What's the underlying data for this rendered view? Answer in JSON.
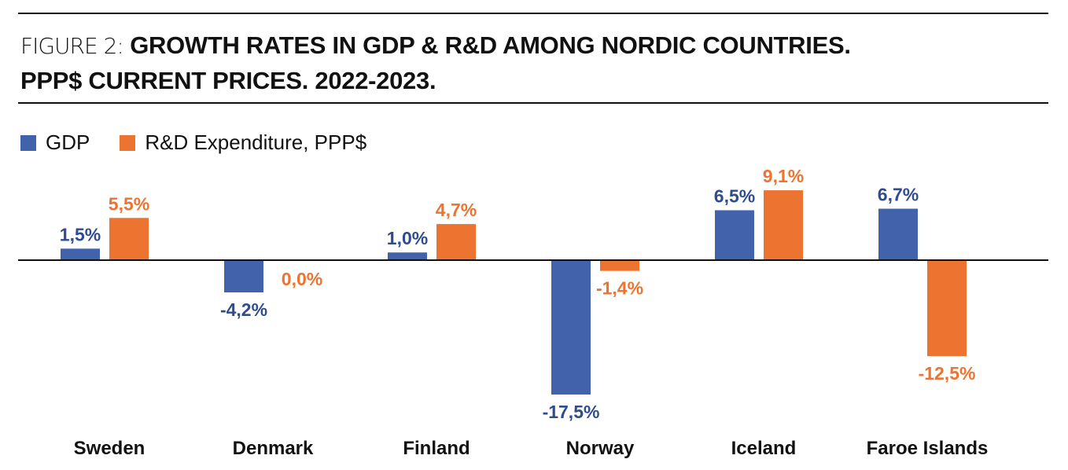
{
  "figure": {
    "prefix": "FIGURE 2:",
    "title_line1": "GROWTH RATES IN GDP & R&D AMONG NORDIC COUNTRIES.",
    "title_line2": "PPP$ CURRENT PRICES. 2022-2023."
  },
  "colors": {
    "gdp": "#4262AB",
    "rd": "#ED7430",
    "gdp_label": "#2F4C8E",
    "rd_label": "#ED7430",
    "axis": "#111111"
  },
  "chart_data": {
    "type": "bar",
    "title": "FIGURE 2: GROWTH RATES IN GDP & R&D AMONG NORDIC COUNTRIES. PPP$ CURRENT PRICES. 2022-2023.",
    "xlabel": "",
    "ylabel": "",
    "categories": [
      "Sweden",
      "Denmark",
      "Finland",
      "Norway",
      "Iceland",
      "Faroe Islands"
    ],
    "series": [
      {
        "name": "GDP",
        "values": [
          1.5,
          -4.2,
          1.0,
          -17.5,
          6.5,
          6.7
        ],
        "labels": [
          "1,5%",
          "-4,2%",
          "1,0%",
          "-17,5%",
          "6,5%",
          "6,7%"
        ]
      },
      {
        "name": "R&D Expenditure, PPP$",
        "values": [
          5.5,
          0.0,
          4.7,
          -1.4,
          9.1,
          -12.5
        ],
        "labels": [
          "5,5%",
          "0,0%",
          "4,7%",
          "-1,4%",
          "9,1%",
          "-12,5%"
        ]
      }
    ],
    "ylim": [
      -20,
      12
    ],
    "grid": false,
    "legend": "top-left",
    "value_axis_visible": false
  }
}
